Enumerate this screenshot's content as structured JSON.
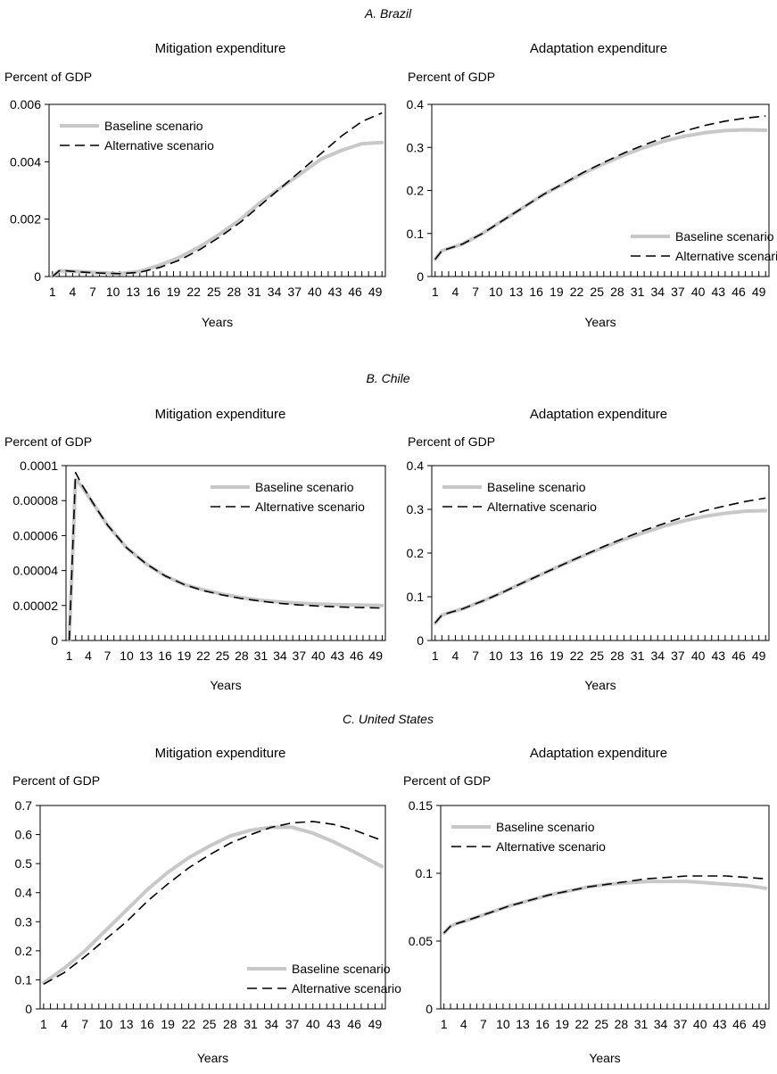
{
  "chart_data": [
    {
      "panel": "A. Brazil",
      "title": "Mitigation expenditure",
      "type": "line",
      "ylabel": "Percent of GDP",
      "xlabel": "Years",
      "ylim": [
        0,
        0.006
      ],
      "yticks": [
        "0",
        "0.002",
        "0.004",
        "0.006"
      ],
      "xlim": [
        1,
        50
      ],
      "xticks": [
        1,
        4,
        7,
        10,
        13,
        16,
        19,
        22,
        25,
        28,
        31,
        34,
        37,
        40,
        43,
        46,
        49
      ],
      "legend": "top-left",
      "series": [
        {
          "name": "Baseline scenario",
          "color": "#c8c8c8",
          "style": "solid",
          "x": [
            1,
            2,
            3,
            5,
            8,
            11,
            14,
            17,
            20,
            23,
            26,
            29,
            32,
            35,
            38,
            41,
            44,
            47,
            50
          ],
          "y": [
            0,
            0.0002,
            0.0002,
            0.00017,
            0.00013,
            0.0001,
            0.00018,
            0.0004,
            0.00068,
            0.00105,
            0.0015,
            0.002,
            0.0026,
            0.0031,
            0.0036,
            0.0041,
            0.0044,
            0.00463,
            0.00467
          ]
        },
        {
          "name": "Alternative scenario",
          "color": "#000000",
          "style": "dashed",
          "x": [
            1,
            2,
            3,
            5,
            8,
            11,
            14,
            17,
            20,
            23,
            26,
            29,
            32,
            35,
            38,
            41,
            44,
            47,
            50
          ],
          "y": [
            0,
            0.0002,
            0.0002,
            0.00016,
            0.00012,
            0.0001,
            0.00015,
            0.00032,
            0.00058,
            0.00095,
            0.0014,
            0.0019,
            0.0025,
            0.0031,
            0.0037,
            0.0043,
            0.0049,
            0.0054,
            0.0057
          ]
        }
      ]
    },
    {
      "panel": "A. Brazil",
      "title": "Adaptation expenditure",
      "type": "line",
      "ylabel": "Percent of GDP",
      "xlabel": "Years",
      "ylim": [
        0,
        0.4
      ],
      "yticks": [
        "0",
        "0.1",
        "0.2",
        "0.3",
        "0.4"
      ],
      "xlim": [
        1,
        50
      ],
      "xticks": [
        1,
        4,
        7,
        10,
        13,
        16,
        19,
        22,
        25,
        28,
        31,
        34,
        37,
        40,
        43,
        46,
        49
      ],
      "legend": "bottom-right",
      "series": [
        {
          "name": "Baseline scenario",
          "color": "#c8c8c8",
          "style": "solid",
          "x": [
            1,
            2,
            3,
            5,
            8,
            11,
            14,
            17,
            20,
            23,
            26,
            29,
            32,
            35,
            38,
            41,
            44,
            47,
            50
          ],
          "y": [
            0.04,
            0.06,
            0.065,
            0.075,
            0.1,
            0.13,
            0.16,
            0.19,
            0.215,
            0.24,
            0.262,
            0.282,
            0.3,
            0.315,
            0.326,
            0.334,
            0.339,
            0.341,
            0.34
          ]
        },
        {
          "name": "Alternative scenario",
          "color": "#000000",
          "style": "dashed",
          "x": [
            1,
            2,
            3,
            5,
            8,
            11,
            14,
            17,
            20,
            23,
            26,
            29,
            32,
            35,
            38,
            41,
            44,
            47,
            50
          ],
          "y": [
            0.04,
            0.06,
            0.065,
            0.075,
            0.1,
            0.13,
            0.16,
            0.19,
            0.216,
            0.242,
            0.265,
            0.287,
            0.306,
            0.323,
            0.338,
            0.351,
            0.361,
            0.368,
            0.373
          ]
        }
      ]
    },
    {
      "panel": "B. Chile",
      "title": "Mitigation expenditure",
      "type": "line",
      "ylabel": "Percent of GDP",
      "xlabel": "Years",
      "ylim": [
        0,
        0.0001
      ],
      "yticks": [
        "0",
        "0.00002",
        "0.00004",
        "0.00006",
        "0.00008",
        "0.0001"
      ],
      "xlim": [
        1,
        50
      ],
      "xticks": [
        1,
        4,
        7,
        10,
        13,
        16,
        19,
        22,
        25,
        28,
        31,
        34,
        37,
        40,
        43,
        46,
        49
      ],
      "legend": "top-right",
      "series": [
        {
          "name": "Baseline scenario",
          "color": "#c8c8c8",
          "style": "solid",
          "x": [
            1,
            2,
            3,
            5,
            7,
            10,
            13,
            16,
            19,
            22,
            25,
            28,
            31,
            34,
            37,
            40,
            43,
            46,
            50
          ],
          "y": [
            0,
            9.2e-05,
            8.8e-05,
            7.7e-05,
            6.6e-05,
            5.3e-05,
            4.4e-05,
            3.7e-05,
            3.2e-05,
            2.9e-05,
            2.65e-05,
            2.45e-05,
            2.3e-05,
            2.2e-05,
            2.13e-05,
            2.08e-05,
            2.05e-05,
            2.03e-05,
            2e-05
          ]
        },
        {
          "name": "Alternative scenario",
          "color": "#000000",
          "style": "dashed",
          "x": [
            1,
            2,
            3,
            5,
            7,
            10,
            13,
            16,
            19,
            22,
            25,
            28,
            31,
            34,
            37,
            40,
            43,
            46,
            50
          ],
          "y": [
            0,
            9.6e-05,
            8.9e-05,
            7.7e-05,
            6.6e-05,
            5.3e-05,
            4.4e-05,
            3.7e-05,
            3.2e-05,
            2.85e-05,
            2.6e-05,
            2.4e-05,
            2.25e-05,
            2.12e-05,
            2.03e-05,
            1.97e-05,
            1.92e-05,
            1.89e-05,
            1.85e-05
          ]
        }
      ]
    },
    {
      "panel": "B. Chile",
      "title": "Adaptation expenditure",
      "type": "line",
      "ylabel": "Percent of GDP",
      "xlabel": "Years",
      "ylim": [
        0,
        0.4
      ],
      "yticks": [
        "0",
        "0.1",
        "0.2",
        "0.3",
        "0.4"
      ],
      "xlim": [
        1,
        50
      ],
      "xticks": [
        1,
        4,
        7,
        10,
        13,
        16,
        19,
        22,
        25,
        28,
        31,
        34,
        37,
        40,
        43,
        46,
        49
      ],
      "legend": "top-left",
      "series": [
        {
          "name": "Baseline scenario",
          "color": "#c8c8c8",
          "style": "solid",
          "x": [
            1,
            2,
            3,
            5,
            8,
            11,
            14,
            17,
            20,
            23,
            26,
            29,
            32,
            35,
            38,
            41,
            44,
            47,
            50
          ],
          "y": [
            0.04,
            0.058,
            0.063,
            0.072,
            0.09,
            0.11,
            0.132,
            0.153,
            0.174,
            0.194,
            0.213,
            0.231,
            0.247,
            0.262,
            0.274,
            0.284,
            0.291,
            0.296,
            0.297
          ]
        },
        {
          "name": "Alternative scenario",
          "color": "#000000",
          "style": "dashed",
          "x": [
            1,
            2,
            3,
            5,
            8,
            11,
            14,
            17,
            20,
            23,
            26,
            29,
            32,
            35,
            38,
            41,
            44,
            47,
            50
          ],
          "y": [
            0.04,
            0.058,
            0.063,
            0.072,
            0.09,
            0.11,
            0.132,
            0.153,
            0.174,
            0.195,
            0.215,
            0.234,
            0.252,
            0.268,
            0.283,
            0.297,
            0.308,
            0.318,
            0.326
          ]
        }
      ]
    },
    {
      "panel": "C. United States",
      "title": "Mitigation expenditure",
      "type": "line",
      "ylabel": "Percent of GDP",
      "xlabel": "Years",
      "ylim": [
        0,
        0.7
      ],
      "yticks": [
        "0",
        "0.1",
        "0.2",
        "0.3",
        "0.4",
        "0.5",
        "0.6",
        "0.7"
      ],
      "xlim": [
        1,
        50
      ],
      "xticks": [
        1,
        4,
        7,
        10,
        13,
        16,
        19,
        22,
        25,
        28,
        31,
        34,
        37,
        40,
        43,
        46,
        49
      ],
      "legend": "bottom-right",
      "series": [
        {
          "name": "Baseline scenario",
          "color": "#c8c8c8",
          "style": "solid",
          "x": [
            1,
            4,
            7,
            10,
            13,
            16,
            19,
            22,
            25,
            28,
            31,
            34,
            37,
            40,
            43,
            46,
            50
          ],
          "y": [
            0.09,
            0.14,
            0.2,
            0.27,
            0.34,
            0.41,
            0.47,
            0.52,
            0.56,
            0.595,
            0.615,
            0.625,
            0.625,
            0.605,
            0.575,
            0.54,
            0.49
          ]
        },
        {
          "name": "Alternative scenario",
          "color": "#000000",
          "style": "dashed",
          "x": [
            1,
            4,
            7,
            10,
            13,
            16,
            19,
            22,
            25,
            28,
            31,
            34,
            37,
            40,
            43,
            46,
            50
          ],
          "y": [
            0.085,
            0.125,
            0.18,
            0.24,
            0.3,
            0.37,
            0.43,
            0.485,
            0.53,
            0.57,
            0.6,
            0.625,
            0.64,
            0.645,
            0.635,
            0.615,
            0.58
          ]
        }
      ]
    },
    {
      "panel": "C. United States",
      "title": "Adaptation expenditure",
      "type": "line",
      "ylabel": "Percent of GDP",
      "xlabel": "Years",
      "ylim": [
        0,
        0.15
      ],
      "yticks": [
        "0",
        "0.05",
        "0.1",
        "0.15"
      ],
      "xlim": [
        1,
        50
      ],
      "xticks": [
        1,
        4,
        7,
        10,
        13,
        16,
        19,
        22,
        25,
        28,
        31,
        34,
        37,
        40,
        43,
        46,
        49
      ],
      "legend": "top-left",
      "series": [
        {
          "name": "Baseline scenario",
          "color": "#c8c8c8",
          "style": "solid",
          "x": [
            1,
            2,
            3,
            5,
            8,
            11,
            14,
            17,
            20,
            23,
            26,
            29,
            32,
            35,
            38,
            41,
            44,
            47,
            50
          ],
          "y": [
            0.056,
            0.061,
            0.063,
            0.066,
            0.071,
            0.076,
            0.08,
            0.084,
            0.087,
            0.09,
            0.092,
            0.093,
            0.094,
            0.094,
            0.094,
            0.093,
            0.092,
            0.091,
            0.089
          ]
        },
        {
          "name": "Alternative scenario",
          "color": "#000000",
          "style": "dashed",
          "x": [
            1,
            2,
            3,
            5,
            8,
            11,
            14,
            17,
            20,
            23,
            26,
            29,
            32,
            35,
            38,
            41,
            44,
            47,
            50
          ],
          "y": [
            0.056,
            0.061,
            0.063,
            0.066,
            0.071,
            0.076,
            0.08,
            0.084,
            0.087,
            0.09,
            0.092,
            0.094,
            0.096,
            0.097,
            0.098,
            0.098,
            0.098,
            0.097,
            0.096
          ]
        }
      ]
    }
  ]
}
